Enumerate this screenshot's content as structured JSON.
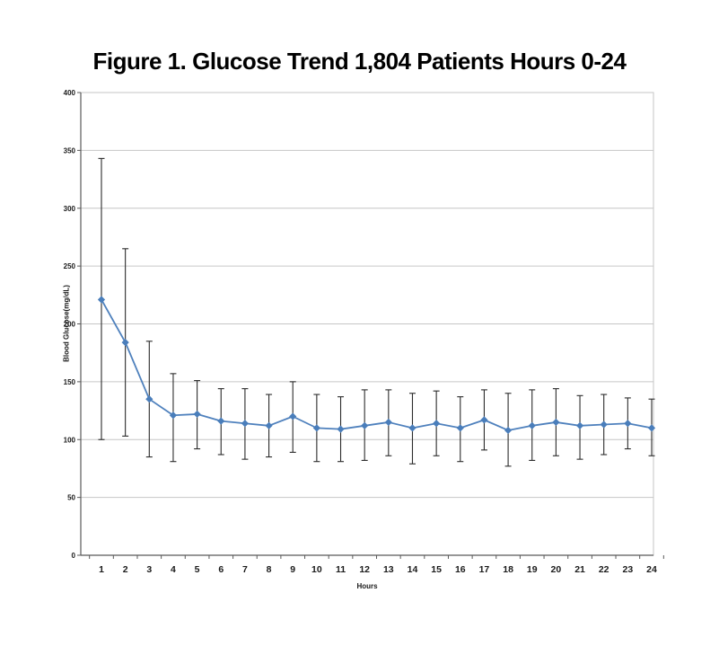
{
  "title": "Figure 1. Glucose Trend 1,804 Patients Hours 0-24",
  "chart_data": {
    "type": "line",
    "title": "Figure 1. Glucose Trend 1,804 Patients Hours 0-24",
    "xlabel": "Hours",
    "ylabel": "Blood Glucose(mg/dL)",
    "x": [
      1,
      2,
      3,
      4,
      5,
      6,
      7,
      8,
      9,
      10,
      11,
      12,
      13,
      14,
      15,
      16,
      17,
      18,
      19,
      20,
      21,
      22,
      23,
      24
    ],
    "series": [
      {
        "values": [
          221,
          184,
          135,
          121,
          122,
          116,
          114,
          112,
          120,
          110,
          109,
          112,
          115,
          110,
          114,
          110,
          117,
          108,
          112,
          115,
          112,
          113,
          114,
          110
        ],
        "error_upper": [
          343,
          265,
          185,
          157,
          151,
          144,
          144,
          139,
          150,
          139,
          137,
          143,
          143,
          140,
          142,
          137,
          143,
          140,
          143,
          144,
          138,
          139,
          136,
          135
        ],
        "error_lower": [
          100,
          103,
          85,
          81,
          92,
          87,
          83,
          85,
          89,
          81,
          81,
          82,
          86,
          79,
          86,
          81,
          91,
          77,
          82,
          86,
          83,
          87,
          92,
          86
        ]
      }
    ],
    "ylim": [
      0,
      400
    ],
    "y_ticks": [
      0,
      50,
      100,
      150,
      200,
      250,
      300,
      350,
      400
    ],
    "grid": "horizontal",
    "legend": "none",
    "marker": "diamond",
    "colors": {
      "line": "#4F81BD",
      "marker": "#4A7EBB",
      "error_bar": "#2b2b2b",
      "gridline": "#c6c6c6",
      "plot_border": "#c6c6c6",
      "axis": "#595959",
      "text": "#1a1a1a"
    }
  }
}
